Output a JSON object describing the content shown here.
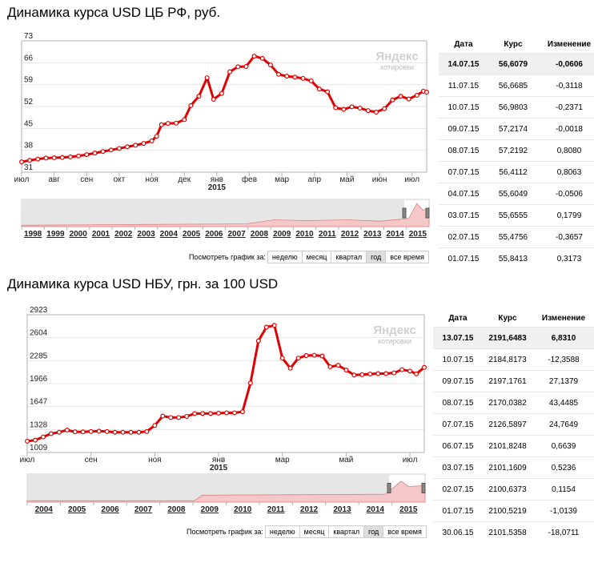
{
  "colors": {
    "line": "#e00000",
    "grid": "#e4e4e4",
    "axis": "#b0b0b0",
    "nav_bg": "#e6e6e6",
    "nav_fill": "#f4c8c8",
    "up": "#2fa844",
    "down": "#d81e1e"
  },
  "watermark": {
    "brand": "Яндекс",
    "sub": "котировки"
  },
  "section1": {
    "title": "Динамика курса USD ЦБ РФ, руб.",
    "periods_label": "Посмотреть график за:",
    "periods": [
      "неделю",
      "месяц",
      "квартал",
      "год",
      "все время"
    ],
    "active_period": "год",
    "table": {
      "headers": [
        "Дата",
        "Курс",
        "Изменение"
      ],
      "rows": [
        {
          "date": "14.07.15",
          "rate": "56,6079",
          "change": "-0,0606",
          "dir": "down"
        },
        {
          "date": "11.07.15",
          "rate": "56,6685",
          "change": "-0,3118",
          "dir": "down"
        },
        {
          "date": "10.07.15",
          "rate": "56,9803",
          "change": "-0,2371",
          "dir": "down"
        },
        {
          "date": "09.07.15",
          "rate": "57,2174",
          "change": "-0,0018",
          "dir": "down"
        },
        {
          "date": "08.07.15",
          "rate": "57,2192",
          "change": "0,8080",
          "dir": "up"
        },
        {
          "date": "07.07.15",
          "rate": "56,4112",
          "change": "0,8063",
          "dir": "up"
        },
        {
          "date": "04.07.15",
          "rate": "55,6049",
          "change": "-0,0506",
          "dir": "down"
        },
        {
          "date": "03.07.15",
          "rate": "55,6555",
          "change": "0,1799",
          "dir": "up"
        },
        {
          "date": "02.07.15",
          "rate": "55,4756",
          "change": "-0,3657",
          "dir": "down"
        },
        {
          "date": "01.07.15",
          "rate": "55,8413",
          "change": "0,3173",
          "dir": "up"
        }
      ]
    },
    "nav_years": [
      "1998",
      "1999",
      "2000",
      "2001",
      "2002",
      "2003",
      "2004",
      "2005",
      "2006",
      "2007",
      "2008",
      "2009",
      "2010",
      "2011",
      "2012",
      "2013",
      "2014",
      "2015"
    ]
  },
  "section2": {
    "title": "Динамика курса USD НБУ, грн. за 100 USD",
    "periods_label": "Посмотреть график за:",
    "periods": [
      "неделю",
      "месяц",
      "квартал",
      "год",
      "все время"
    ],
    "active_period": "год",
    "table": {
      "headers": [
        "Дата",
        "Курс",
        "Изменение"
      ],
      "rows": [
        {
          "date": "13.07.15",
          "rate": "2191,6483",
          "change": "6,8310",
          "dir": "up"
        },
        {
          "date": "10.07.15",
          "rate": "2184,8173",
          "change": "-12,3588",
          "dir": "down"
        },
        {
          "date": "09.07.15",
          "rate": "2197,1761",
          "change": "27,1379",
          "dir": "up"
        },
        {
          "date": "08.07.15",
          "rate": "2170,0382",
          "change": "43,4485",
          "dir": "up"
        },
        {
          "date": "07.07.15",
          "rate": "2126,5897",
          "change": "24,7649",
          "dir": "up"
        },
        {
          "date": "06.07.15",
          "rate": "2101,8248",
          "change": "0,6639",
          "dir": "up"
        },
        {
          "date": "03.07.15",
          "rate": "2101,1609",
          "change": "0,5236",
          "dir": "up"
        },
        {
          "date": "02.07.15",
          "rate": "2100,6373",
          "change": "0,1154",
          "dir": "up"
        },
        {
          "date": "01.07.15",
          "rate": "2100,5219",
          "change": "-1,0139",
          "dir": "down"
        },
        {
          "date": "30.06.15",
          "rate": "2101,5358",
          "change": "-18,0711",
          "dir": "down"
        }
      ]
    },
    "nav_years": [
      "2004",
      "2005",
      "2006",
      "2007",
      "2008",
      "2009",
      "2010",
      "2011",
      "2012",
      "2013",
      "2014",
      "2015"
    ]
  },
  "chart_data": [
    {
      "type": "line",
      "title": "Динамика курса USD ЦБ РФ, руб.",
      "ylim": [
        31,
        73
      ],
      "yticks": [
        31,
        38,
        45,
        52,
        59,
        66,
        73
      ],
      "xlim": [
        0,
        12.45
      ],
      "x_month_labels": [
        {
          "x": 0,
          "label": "июл"
        },
        {
          "x": 1,
          "label": "авг"
        },
        {
          "x": 2,
          "label": "сен"
        },
        {
          "x": 3,
          "label": "окт"
        },
        {
          "x": 4,
          "label": "ноя"
        },
        {
          "x": 5,
          "label": "дек"
        },
        {
          "x": 6,
          "label": "янв"
        },
        {
          "x": 7,
          "label": "фев"
        },
        {
          "x": 8,
          "label": "мар"
        },
        {
          "x": 9,
          "label": "апр"
        },
        {
          "x": 10,
          "label": "май"
        },
        {
          "x": 11,
          "label": "июн"
        },
        {
          "x": 12,
          "label": "июл"
        }
      ],
      "x_year_label": {
        "x": 6,
        "label": "2015"
      },
      "series": [
        {
          "values": [
            [
              0,
              34.3
            ],
            [
              0.25,
              34.8
            ],
            [
              0.5,
              35.2
            ],
            [
              0.75,
              35.5
            ],
            [
              1,
              35.6
            ],
            [
              1.25,
              35.7
            ],
            [
              1.5,
              35.9
            ],
            [
              1.75,
              36.2
            ],
            [
              2,
              36.6
            ],
            [
              2.25,
              37.1
            ],
            [
              2.5,
              37.6
            ],
            [
              2.75,
              38.1
            ],
            [
              3,
              38.6
            ],
            [
              3.25,
              39.1
            ],
            [
              3.5,
              39.6
            ],
            [
              3.75,
              40.2
            ],
            [
              4,
              41
            ],
            [
              4.15,
              42.5
            ],
            [
              4.3,
              46.2
            ],
            [
              4.5,
              46.6
            ],
            [
              4.75,
              46.7
            ],
            [
              5,
              47.8
            ],
            [
              5.2,
              52.3
            ],
            [
              5.45,
              55.3
            ],
            [
              5.7,
              61.2
            ],
            [
              5.9,
              54.3
            ],
            [
              6.15,
              56.2
            ],
            [
              6.4,
              63.1
            ],
            [
              6.65,
              64.7
            ],
            [
              6.9,
              64.8
            ],
            [
              7.15,
              68.1
            ],
            [
              7.4,
              67.4
            ],
            [
              7.65,
              65.3
            ],
            [
              7.9,
              62.3
            ],
            [
              8.15,
              61.7
            ],
            [
              8.4,
              61.4
            ],
            [
              8.65,
              61
            ],
            [
              8.9,
              60.2
            ],
            [
              9.15,
              57.6
            ],
            [
              9.4,
              56.7
            ],
            [
              9.65,
              51.6
            ],
            [
              9.9,
              51.1
            ],
            [
              10.15,
              51.9
            ],
            [
              10.4,
              51.5
            ],
            [
              10.65,
              50.7
            ],
            [
              10.9,
              50.2
            ],
            [
              11.15,
              51.3
            ],
            [
              11.4,
              54.1
            ],
            [
              11.65,
              55.3
            ],
            [
              11.9,
              54.4
            ],
            [
              12.15,
              55.6
            ],
            [
              12.35,
              56.9
            ],
            [
              12.45,
              56.6
            ]
          ]
        }
      ]
    },
    {
      "type": "line",
      "title": "Динамика курса USD НБУ, грн. за 100 USD",
      "ylim": [
        1009,
        2923
      ],
      "yticks": [
        1009,
        1328,
        1647,
        1966,
        2285,
        2604,
        2923
      ],
      "xlim": [
        0,
        12.45
      ],
      "x_month_labels": [
        {
          "x": 0,
          "label": "июл"
        },
        {
          "x": 2,
          "label": "сен"
        },
        {
          "x": 4,
          "label": "ноя"
        },
        {
          "x": 6,
          "label": "янв"
        },
        {
          "x": 8,
          "label": "мар"
        },
        {
          "x": 10,
          "label": "май"
        },
        {
          "x": 12,
          "label": "июл"
        }
      ],
      "x_year_label": {
        "x": 6,
        "label": "2015"
      },
      "series": [
        {
          "values": [
            [
              0,
              1165
            ],
            [
              0.25,
              1180
            ],
            [
              0.5,
              1225
            ],
            [
              0.75,
              1270
            ],
            [
              1,
              1290
            ],
            [
              1.25,
              1320
            ],
            [
              1.5,
              1295
            ],
            [
              1.75,
              1295
            ],
            [
              2,
              1300
            ],
            [
              2.25,
              1305
            ],
            [
              2.5,
              1300
            ],
            [
              2.75,
              1290
            ],
            [
              3,
              1290
            ],
            [
              3.25,
              1290
            ],
            [
              3.5,
              1290
            ],
            [
              3.75,
              1300
            ],
            [
              4,
              1385
            ],
            [
              4.25,
              1515
            ],
            [
              4.5,
              1495
            ],
            [
              4.75,
              1495
            ],
            [
              5,
              1510
            ],
            [
              5.25,
              1550
            ],
            [
              5.5,
              1550
            ],
            [
              5.75,
              1550
            ],
            [
              6,
              1555
            ],
            [
              6.25,
              1560
            ],
            [
              6.5,
              1560
            ],
            [
              6.75,
              1575
            ],
            [
              7,
              1975
            ],
            [
              7.25,
              2560
            ],
            [
              7.5,
              2750
            ],
            [
              7.75,
              2775
            ],
            [
              8,
              2320
            ],
            [
              8.25,
              2180
            ],
            [
              8.5,
              2320
            ],
            [
              8.75,
              2355
            ],
            [
              9,
              2360
            ],
            [
              9.25,
              2350
            ],
            [
              9.5,
              2200
            ],
            [
              9.75,
              2220
            ],
            [
              10,
              2155
            ],
            [
              10.25,
              2085
            ],
            [
              10.5,
              2090
            ],
            [
              10.75,
              2100
            ],
            [
              11,
              2105
            ],
            [
              11.25,
              2105
            ],
            [
              11.5,
              2115
            ],
            [
              11.75,
              2160
            ],
            [
              12,
              2140
            ],
            [
              12.2,
              2101
            ],
            [
              12.45,
              2191
            ]
          ]
        }
      ]
    }
  ]
}
